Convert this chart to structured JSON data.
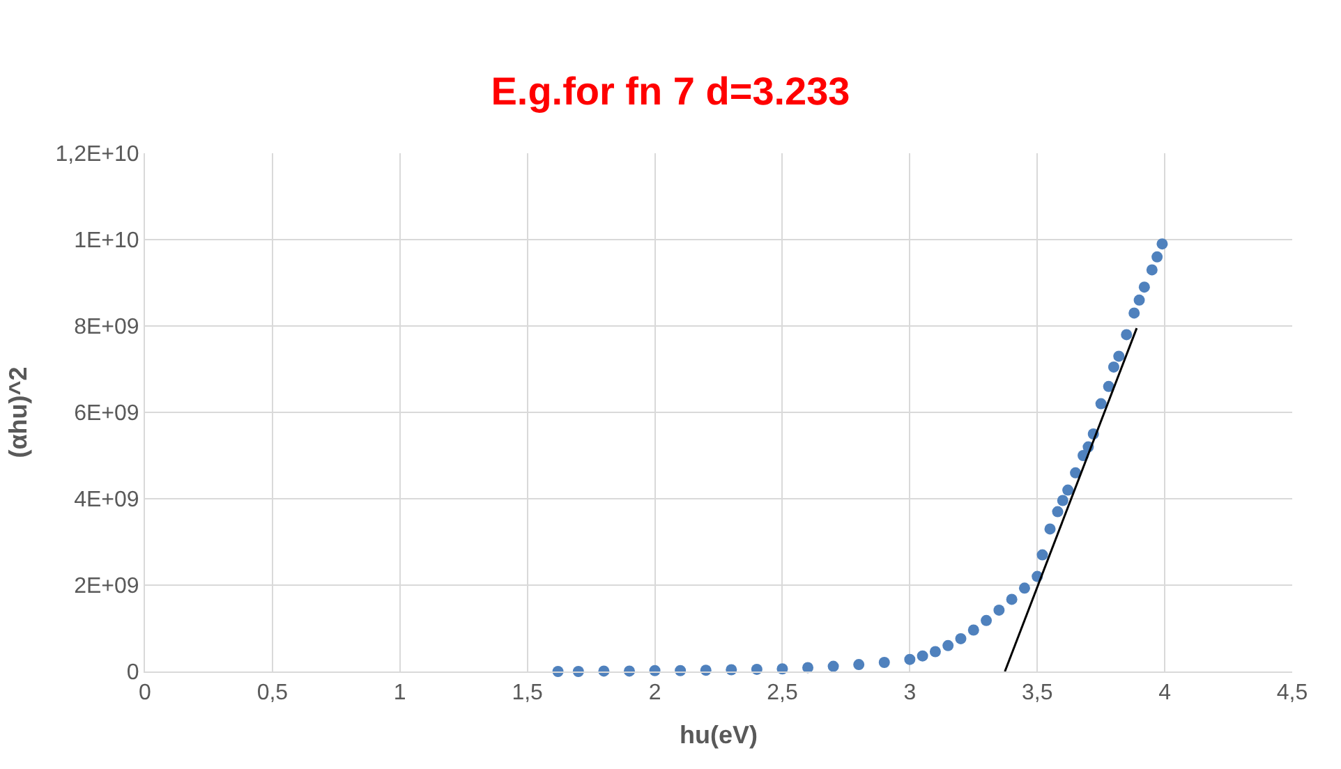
{
  "chart_data": {
    "type": "scatter",
    "title": "E.g.for fn 7 d=3.233",
    "xlabel": "hu(eV)",
    "ylabel": "(αhu)^2",
    "series": [
      {
        "color": "#4f81bd",
        "x": [
          1.62,
          1.7,
          1.8,
          1.9,
          2.0,
          2.1,
          2.2,
          2.3,
          2.4,
          2.5,
          2.6,
          2.7,
          2.8,
          2.9,
          3.0,
          3.05,
          3.1,
          3.15,
          3.2,
          3.25,
          3.3,
          3.35,
          3.4,
          3.45,
          3.5,
          3.52,
          3.55,
          3.58,
          3.6,
          3.62,
          3.65,
          3.68,
          3.7,
          3.72,
          3.75,
          3.78,
          3.8,
          3.82,
          3.85,
          3.88,
          3.9,
          3.92,
          3.95,
          3.97,
          3.99
        ],
        "values": [
          0.0,
          0.0,
          10000000.0,
          10000000.0,
          20000000.0,
          20000000.0,
          30000000.0,
          40000000.0,
          50000000.0,
          60000000.0,
          90000000.0,
          120000000.0,
          160000000.0,
          210000000.0,
          280000000.0,
          360000000.0,
          460000000.0,
          600000000.0,
          760000000.0,
          960000000.0,
          1180000000.0,
          1420000000.0,
          1670000000.0,
          1930000000.0,
          2200000000.0,
          2700000000.0,
          3300000000.0,
          3700000000.0,
          3960000000.0,
          4200000000.0,
          4600000000.0,
          5000000000.0,
          5200000000.0,
          5500000000.0,
          6200000000.0,
          6600000000.0,
          7050000000.0,
          7300000000.0,
          7800000000.0,
          8300000000.0,
          8600000000.0,
          8900000000.0,
          9300000000.0,
          9600000000.0,
          9900000000.0
        ]
      },
      {
        "type": "line",
        "marker": "none",
        "color": "#000000",
        "x": [
          3.373,
          3.89
        ],
        "values": [
          0,
          7950000000.0
        ]
      }
    ],
    "xlim": [
      0,
      4.5
    ],
    "ylim": [
      0,
      12000000000.0
    ],
    "xticks": [
      0,
      {
        "value": 0.5,
        "label": "0,5"
      },
      1,
      {
        "value": 1.5,
        "label": "1,5"
      },
      2,
      {
        "value": 2.5,
        "label": "2,5"
      },
      3,
      {
        "value": 3.5,
        "label": "3,5"
      },
      4,
      {
        "value": 4.5,
        "label": "4,5"
      }
    ],
    "yticks": [
      0,
      {
        "value": 2000000000.0,
        "label": "2E+09"
      },
      {
        "value": 4000000000.0,
        "label": "4E+09"
      },
      {
        "value": 6000000000.0,
        "label": "6E+09"
      },
      {
        "value": 8000000000.0,
        "label": "8E+09"
      },
      {
        "value": 10000000000.0,
        "label": "1E+10"
      },
      {
        "value": 12000000000.0,
        "label": "1,2E+10"
      }
    ],
    "grid": true,
    "marker": "circle"
  }
}
